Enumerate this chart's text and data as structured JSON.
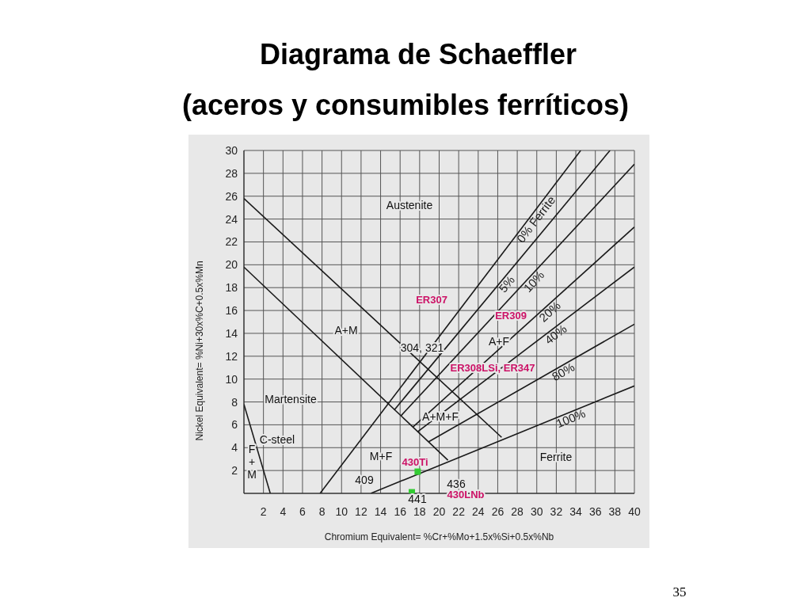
{
  "chart_data": {
    "type": "line",
    "title": "Diagrama de Schaeffler",
    "subtitle": "(aceros y consumibles ferríticos)",
    "xlabel": "Chromium Equivalent= %Cr+%Mo+1.5x%Si+0.5x%Nb",
    "ylabel": "Nickel Equivalent= %Ni+30x%C+0.5x%Mn",
    "xlim": [
      0,
      40
    ],
    "xticks": [
      2,
      4,
      6,
      8,
      10,
      12,
      14,
      16,
      18,
      20,
      22,
      24,
      26,
      28,
      30,
      32,
      34,
      36,
      38,
      40
    ],
    "ylim": [
      0,
      30
    ],
    "yticks": [
      2,
      4,
      6,
      8,
      10,
      12,
      14,
      16,
      18,
      20,
      22,
      24,
      26,
      28,
      30
    ],
    "grid": true,
    "marker": "none",
    "line_style": "solid",
    "series": [
      {
        "x": [
          0,
          26.4
        ],
        "values": [
          25.8,
          4.9
        ],
        "color": "#1a1a1a"
      },
      {
        "x": [
          0,
          20.9
        ],
        "values": [
          19.8,
          2.9
        ],
        "color": "#1a1a1a"
      },
      {
        "x": [
          0,
          2.7
        ],
        "values": [
          7.8,
          0
        ],
        "color": "#1a1a1a"
      },
      {
        "name": "0% Ferrite",
        "x": [
          7.8,
          34.5
        ],
        "values": [
          0,
          30
        ],
        "color": "#1a1a1a"
      },
      {
        "name": "5%",
        "x": [
          15.4,
          37.5
        ],
        "values": [
          7.3,
          30
        ],
        "color": "#1a1a1a"
      },
      {
        "name": "10%",
        "x": [
          16.1,
          40
        ],
        "values": [
          6.8,
          28.8
        ],
        "color": "#1a1a1a"
      },
      {
        "name": "20%",
        "x": [
          17.3,
          40
        ],
        "values": [
          5.8,
          23.3
        ],
        "color": "#1a1a1a"
      },
      {
        "name": "40%",
        "x": [
          17.8,
          40
        ],
        "values": [
          5.4,
          19.8
        ],
        "color": "#1a1a1a"
      },
      {
        "name": "80%",
        "x": [
          18.9,
          40
        ],
        "values": [
          4.5,
          14.8
        ],
        "color": "#1a1a1a"
      },
      {
        "name": "100%",
        "x": [
          13,
          40
        ],
        "values": [
          0,
          9.4
        ],
        "color": "#1a1a1a"
      },
      {
        "type": "scatter",
        "marker": "square",
        "x": [
          17.8,
          17.2
        ],
        "values": [
          1.9,
          0.1
        ],
        "color": "#33cc33"
      }
    ],
    "annotations": [
      "Austenite",
      "A+M",
      "Martensite",
      "A+F",
      "A+M+F",
      "M+F",
      "Ferrite",
      "F\n+\nM",
      "C-steel",
      "ER307",
      "ER309",
      "304, 321",
      "ER308LSi, ER347",
      "430Ti",
      "409",
      "436",
      "430LNb",
      "441",
      "35"
    ]
  }
}
